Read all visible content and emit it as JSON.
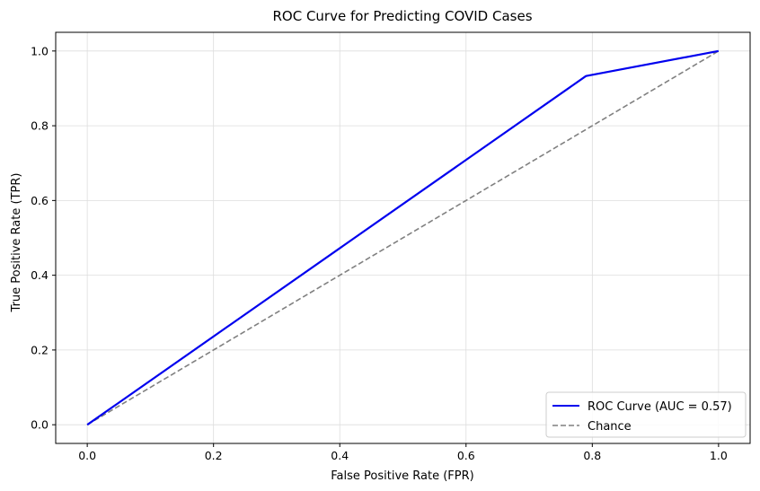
{
  "chart_data": {
    "type": "line",
    "title": "ROC Curve for Predicting COVID Cases",
    "xlabel": "False Positive Rate (FPR)",
    "ylabel": "True Positive Rate (TPR)",
    "xlim": [
      -0.05,
      1.05
    ],
    "ylim": [
      -0.05,
      1.05
    ],
    "xticks": [
      0.0,
      0.2,
      0.4,
      0.6,
      0.8,
      1.0
    ],
    "yticks": [
      0.0,
      0.2,
      0.4,
      0.6,
      0.8,
      1.0
    ],
    "xtick_labels": [
      "0.0",
      "0.2",
      "0.4",
      "0.6",
      "0.8",
      "1.0"
    ],
    "ytick_labels": [
      "0.0",
      "0.2",
      "0.4",
      "0.6",
      "0.8",
      "1.0"
    ],
    "grid": true,
    "legend_position": "bottom-right",
    "series": [
      {
        "name": "ROC Curve (AUC = 0.57)",
        "x": [
          0.0,
          0.79,
          1.0
        ],
        "y": [
          0.0,
          0.933,
          1.0
        ],
        "color": "#0000ee",
        "style": "solid"
      },
      {
        "name": "Chance",
        "x": [
          0.0,
          1.0
        ],
        "y": [
          0.0,
          1.0
        ],
        "color": "#808080",
        "style": "dashed"
      }
    ]
  }
}
